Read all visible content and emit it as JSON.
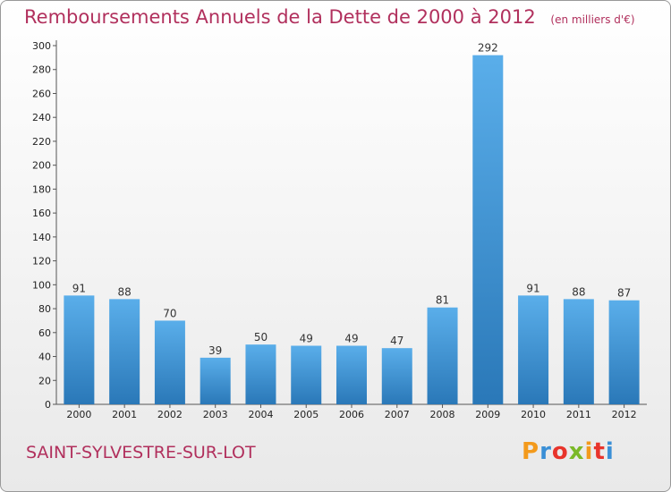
{
  "title": "Remboursements Annuels de la Dette de 2000 à 2012",
  "unit": "(en milliers d'€)",
  "commune": "SAINT-SYLVESTRE-SUR-LOT",
  "brand": {
    "p": "P",
    "r": "r",
    "o": "o",
    "x": "x",
    "i": "i",
    "t": "t",
    "i2": "i"
  },
  "colors": {
    "title": "#b1305d",
    "bar_top": "#5aaeea",
    "bar_bottom": "#2a78b8"
  },
  "chart_data": {
    "type": "bar",
    "title": "Remboursements Annuels de la Dette de 2000 à 2012",
    "categories": [
      "2000",
      "2001",
      "2002",
      "2003",
      "2004",
      "2005",
      "2006",
      "2007",
      "2008",
      "2009",
      "2010",
      "2011",
      "2012"
    ],
    "values": [
      91,
      88,
      70,
      39,
      50,
      49,
      49,
      47,
      81,
      292,
      91,
      88,
      87
    ],
    "ylim": [
      0,
      300
    ],
    "yticks": [
      0,
      20,
      40,
      60,
      80,
      100,
      120,
      140,
      160,
      180,
      200,
      220,
      240,
      260,
      280,
      300
    ],
    "grid": false,
    "legend": "none"
  }
}
